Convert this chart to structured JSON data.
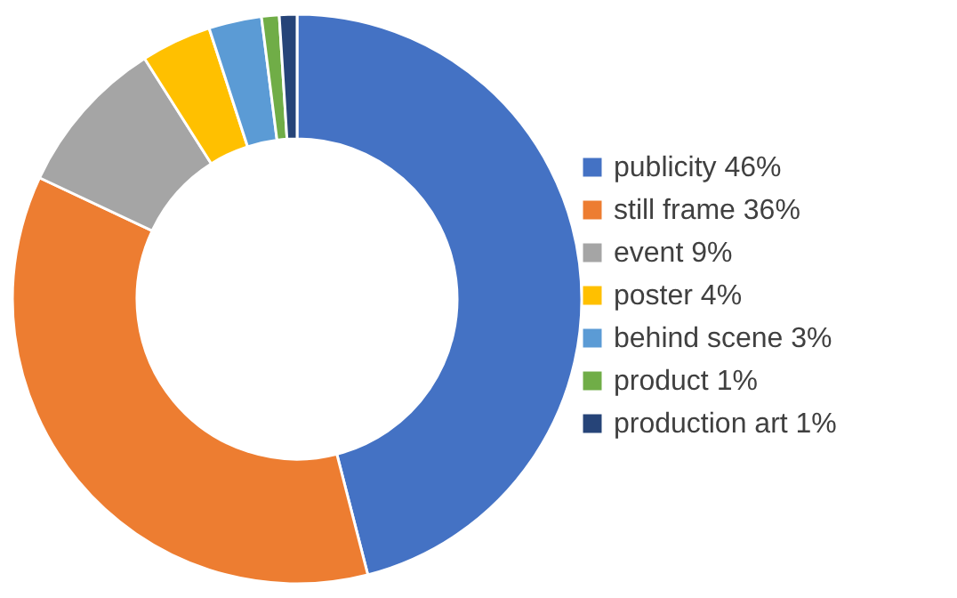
{
  "chart_data": {
    "type": "donut",
    "categories": [
      "publicity  46%",
      "still frame  36%",
      "event  9%",
      "poster  4%",
      "behind scene  3%",
      "product  1%",
      "production art  1%"
    ],
    "values": [
      46,
      36,
      9,
      4,
      3,
      1,
      1
    ],
    "colors": [
      "#4472c4",
      "#ed7d31",
      "#a5a5a5",
      "#ffc000",
      "#5b9bd5",
      "#70ad47",
      "#264478"
    ],
    "legend": "right"
  }
}
